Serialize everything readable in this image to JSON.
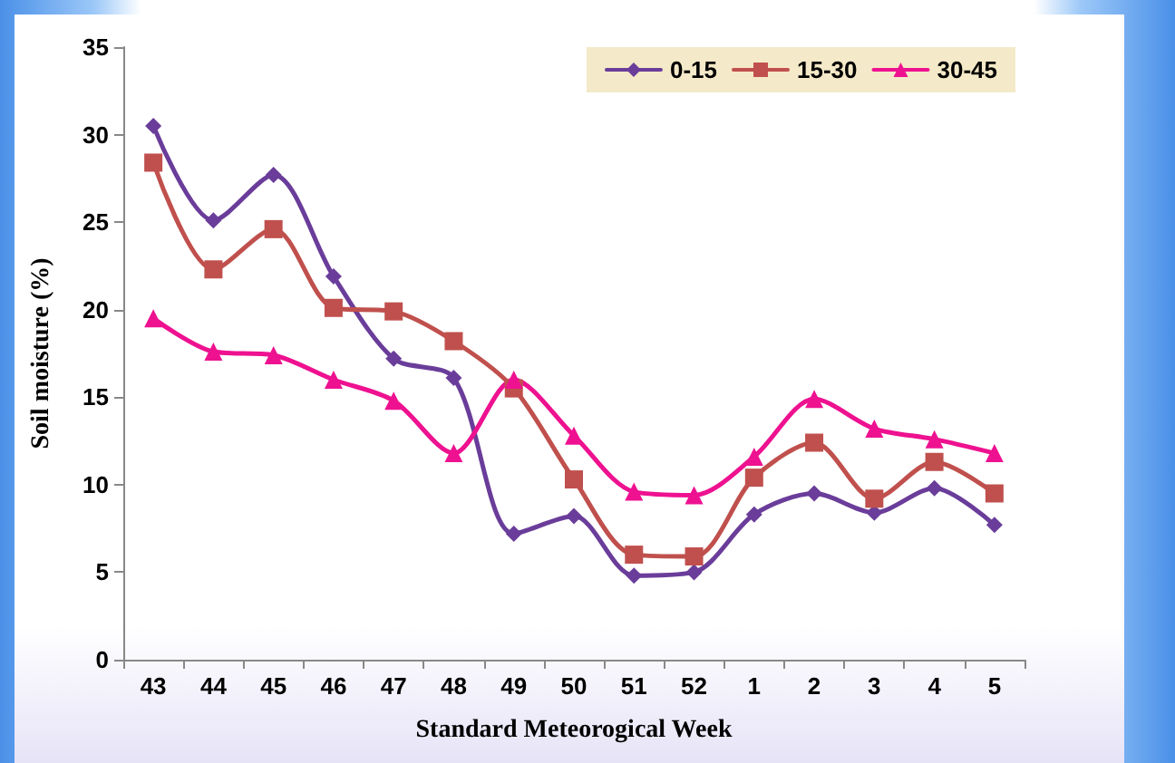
{
  "chart_data": {
    "type": "line",
    "xlabel": "Standard Meteorogical Week",
    "ylabel": "Soil moisture (%)",
    "categories": [
      "43",
      "44",
      "45",
      "46",
      "47",
      "48",
      "49",
      "50",
      "51",
      "52",
      "1",
      "2",
      "3",
      "4",
      "5"
    ],
    "series": [
      {
        "name": "0-15",
        "color": "#6a3d9a",
        "marker": "diamond",
        "values": [
          30.5,
          25.1,
          27.7,
          21.9,
          17.2,
          16.1,
          7.2,
          8.2,
          4.8,
          5.0,
          8.3,
          9.5,
          8.4,
          9.8,
          7.7
        ]
      },
      {
        "name": "15-30",
        "color": "#c0504d",
        "marker": "square",
        "values": [
          28.4,
          22.3,
          24.6,
          20.1,
          19.9,
          18.2,
          15.5,
          10.3,
          6.0,
          5.9,
          10.4,
          12.4,
          9.2,
          11.3,
          9.5
        ]
      },
      {
        "name": "30-45",
        "color": "#ee1190",
        "marker": "triangle",
        "values": [
          19.5,
          17.6,
          17.4,
          16.0,
          14.8,
          11.8,
          16.0,
          12.8,
          9.6,
          9.4,
          11.6,
          14.9,
          13.2,
          12.6,
          11.8
        ]
      }
    ],
    "ylim": [
      0,
      35
    ],
    "yticks": [
      0,
      5,
      10,
      15,
      20,
      25,
      30,
      35
    ],
    "grid": false,
    "legend": "top right",
    "line_style": "solid"
  }
}
